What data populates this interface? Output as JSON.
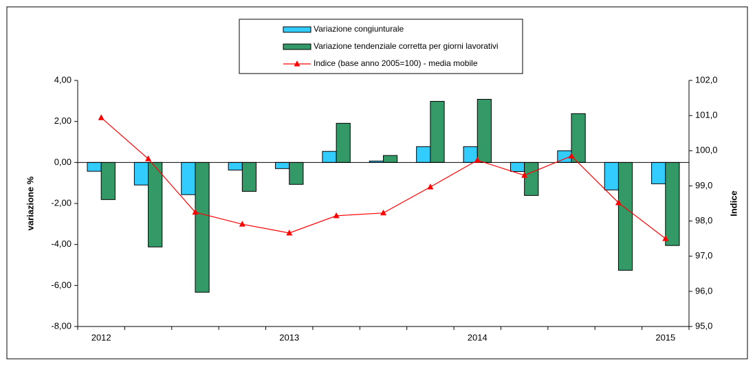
{
  "chart_data": {
    "type": "bar",
    "categories": [
      "2012",
      null,
      null,
      null,
      "2013",
      null,
      null,
      null,
      "2014",
      null,
      null,
      null,
      "2015"
    ],
    "series": [
      {
        "name": "Variazione congiunturale",
        "color": "#33ccff",
        "values": [
          -0.43,
          -1.1,
          -1.57,
          -0.37,
          -0.3,
          0.54,
          0.07,
          0.77,
          0.77,
          -0.44,
          0.57,
          -1.34,
          -1.04
        ]
      },
      {
        "name": "Variazione tendenziale corretta per giorni lavorativi",
        "color": "#339966",
        "values": [
          -1.81,
          -4.12,
          -6.33,
          -1.41,
          -1.07,
          1.91,
          0.34,
          2.98,
          3.08,
          -1.61,
          2.38,
          -5.26,
          -4.05
        ]
      },
      {
        "name": "Indice (base anno 2005=100) - media mobile",
        "color": "#ff0000",
        "type": "line",
        "axis": "y2",
        "values": [
          100.94,
          99.77,
          98.25,
          97.91,
          97.66,
          98.15,
          98.23,
          98.97,
          99.73,
          99.3,
          99.85,
          98.52,
          97.5
        ]
      }
    ],
    "ylabel": "variazione %",
    "y2label": "Indice",
    "ylim": [
      -8,
      4
    ],
    "yticks": [
      {
        "value": -8,
        "label": "-8,00"
      },
      {
        "value": -6,
        "label": "-6,00"
      },
      {
        "value": -4,
        "label": "-4,00"
      },
      {
        "value": -2,
        "label": "-2,00"
      },
      {
        "value": 0,
        "label": "0,00"
      },
      {
        "value": 2,
        "label": "2,00"
      },
      {
        "value": 4,
        "label": "4,00"
      }
    ],
    "y2lim": [
      95,
      102
    ],
    "y2ticks": [
      {
        "value": 95,
        "label": "95,0"
      },
      {
        "value": 96,
        "label": "96,0"
      },
      {
        "value": 97,
        "label": "97,0"
      },
      {
        "value": 98,
        "label": "98,0"
      },
      {
        "value": 99,
        "label": "99,0"
      },
      {
        "value": 100,
        "label": "100,0"
      },
      {
        "value": 101,
        "label": "101,0"
      },
      {
        "value": 102,
        "label": "102,0"
      }
    ],
    "legend": "top"
  }
}
